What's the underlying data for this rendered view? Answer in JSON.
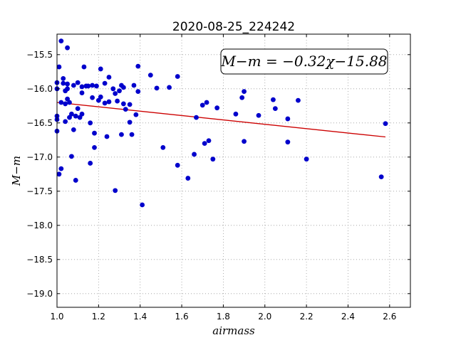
{
  "chart_data": {
    "type": "scatter",
    "title": "2020-08-25_224242",
    "xlabel": "airmass",
    "ylabel": "M−m",
    "xlim": [
      1.0,
      2.7
    ],
    "ylim": [
      -19.2,
      -15.2
    ],
    "y_inverted": true,
    "grid": true,
    "x_ticks": [
      "1.0",
      "1.2",
      "1.4",
      "1.6",
      "1.8",
      "2.0",
      "2.2",
      "2.4",
      "2.6"
    ],
    "y_ticks": [
      "−15.5",
      "−16.0",
      "−16.5",
      "−17.0",
      "−17.5",
      "−18.0",
      "−18.5",
      "−19.0"
    ],
    "annotation": "M−m = −0.32χ−15.88",
    "marker_color": "#0000cc",
    "fit_color": "#cc0000",
    "fit": {
      "slope": -0.32,
      "intercept": -15.88,
      "x_range": [
        1.0,
        2.58
      ]
    },
    "points": [
      {
        "x": 1.0,
        "y": -15.91
      },
      {
        "x": 1.0,
        "y": -16.0
      },
      {
        "x": 1.0,
        "y": -16.4
      },
      {
        "x": 1.0,
        "y": -16.45
      },
      {
        "x": 1.0,
        "y": -16.62
      },
      {
        "x": 1.01,
        "y": -15.68
      },
      {
        "x": 1.01,
        "y": -17.25
      },
      {
        "x": 1.02,
        "y": -17.17
      },
      {
        "x": 1.02,
        "y": -15.3
      },
      {
        "x": 1.02,
        "y": -16.2
      },
      {
        "x": 1.03,
        "y": -15.85
      },
      {
        "x": 1.03,
        "y": -15.92
      },
      {
        "x": 1.04,
        "y": -16.03
      },
      {
        "x": 1.04,
        "y": -16.22
      },
      {
        "x": 1.04,
        "y": -16.48
      },
      {
        "x": 1.05,
        "y": -15.4
      },
      {
        "x": 1.05,
        "y": -15.93
      },
      {
        "x": 1.05,
        "y": -16.0
      },
      {
        "x": 1.05,
        "y": -16.15
      },
      {
        "x": 1.06,
        "y": -16.2
      },
      {
        "x": 1.06,
        "y": -16.42
      },
      {
        "x": 1.07,
        "y": -16.37
      },
      {
        "x": 1.07,
        "y": -16.99
      },
      {
        "x": 1.08,
        "y": -15.95
      },
      {
        "x": 1.08,
        "y": -16.6
      },
      {
        "x": 1.09,
        "y": -16.4
      },
      {
        "x": 1.09,
        "y": -17.34
      },
      {
        "x": 1.1,
        "y": -15.91
      },
      {
        "x": 1.1,
        "y": -16.29
      },
      {
        "x": 1.11,
        "y": -16.42
      },
      {
        "x": 1.12,
        "y": -16.37
      },
      {
        "x": 1.12,
        "y": -16.06
      },
      {
        "x": 1.12,
        "y": -15.97
      },
      {
        "x": 1.13,
        "y": -15.68
      },
      {
        "x": 1.14,
        "y": -15.96
      },
      {
        "x": 1.15,
        "y": -15.96
      },
      {
        "x": 1.16,
        "y": -16.5
      },
      {
        "x": 1.16,
        "y": -17.09
      },
      {
        "x": 1.17,
        "y": -16.13
      },
      {
        "x": 1.17,
        "y": -15.95
      },
      {
        "x": 1.18,
        "y": -16.65
      },
      {
        "x": 1.18,
        "y": -16.86
      },
      {
        "x": 1.19,
        "y": -15.96
      },
      {
        "x": 1.2,
        "y": -16.17
      },
      {
        "x": 1.21,
        "y": -15.71
      },
      {
        "x": 1.21,
        "y": -16.12
      },
      {
        "x": 1.23,
        "y": -16.21
      },
      {
        "x": 1.23,
        "y": -15.92
      },
      {
        "x": 1.24,
        "y": -16.7
      },
      {
        "x": 1.25,
        "y": -16.19
      },
      {
        "x": 1.25,
        "y": -15.83
      },
      {
        "x": 1.27,
        "y": -16.0
      },
      {
        "x": 1.28,
        "y": -16.07
      },
      {
        "x": 1.28,
        "y": -17.49
      },
      {
        "x": 1.29,
        "y": -16.18
      },
      {
        "x": 1.3,
        "y": -16.03
      },
      {
        "x": 1.31,
        "y": -15.95
      },
      {
        "x": 1.31,
        "y": -16.67
      },
      {
        "x": 1.32,
        "y": -15.98
      },
      {
        "x": 1.32,
        "y": -16.22
      },
      {
        "x": 1.33,
        "y": -16.3
      },
      {
        "x": 1.35,
        "y": -16.23
      },
      {
        "x": 1.35,
        "y": -16.49
      },
      {
        "x": 1.36,
        "y": -16.67
      },
      {
        "x": 1.37,
        "y": -15.95
      },
      {
        "x": 1.38,
        "y": -16.38
      },
      {
        "x": 1.39,
        "y": -15.67
      },
      {
        "x": 1.39,
        "y": -16.04
      },
      {
        "x": 1.41,
        "y": -17.7
      },
      {
        "x": 1.45,
        "y": -15.8
      },
      {
        "x": 1.48,
        "y": -15.99
      },
      {
        "x": 1.51,
        "y": -16.86
      },
      {
        "x": 1.54,
        "y": -15.98
      },
      {
        "x": 1.58,
        "y": -15.82
      },
      {
        "x": 1.58,
        "y": -17.12
      },
      {
        "x": 1.63,
        "y": -17.31
      },
      {
        "x": 1.66,
        "y": -16.96
      },
      {
        "x": 1.67,
        "y": -16.42
      },
      {
        "x": 1.7,
        "y": -16.24
      },
      {
        "x": 1.71,
        "y": -16.8
      },
      {
        "x": 1.72,
        "y": -16.2
      },
      {
        "x": 1.73,
        "y": -16.76
      },
      {
        "x": 1.75,
        "y": -17.03
      },
      {
        "x": 1.77,
        "y": -16.28
      },
      {
        "x": 1.86,
        "y": -16.37
      },
      {
        "x": 1.89,
        "y": -16.13
      },
      {
        "x": 1.9,
        "y": -16.04
      },
      {
        "x": 1.9,
        "y": -16.77
      },
      {
        "x": 1.97,
        "y": -16.39
      },
      {
        "x": 2.04,
        "y": -16.16
      },
      {
        "x": 2.05,
        "y": -16.29
      },
      {
        "x": 2.11,
        "y": -16.44
      },
      {
        "x": 2.11,
        "y": -16.78
      },
      {
        "x": 2.16,
        "y": -16.17
      },
      {
        "x": 2.2,
        "y": -17.03
      },
      {
        "x": 2.56,
        "y": -17.29
      },
      {
        "x": 2.58,
        "y": -16.51
      }
    ]
  }
}
